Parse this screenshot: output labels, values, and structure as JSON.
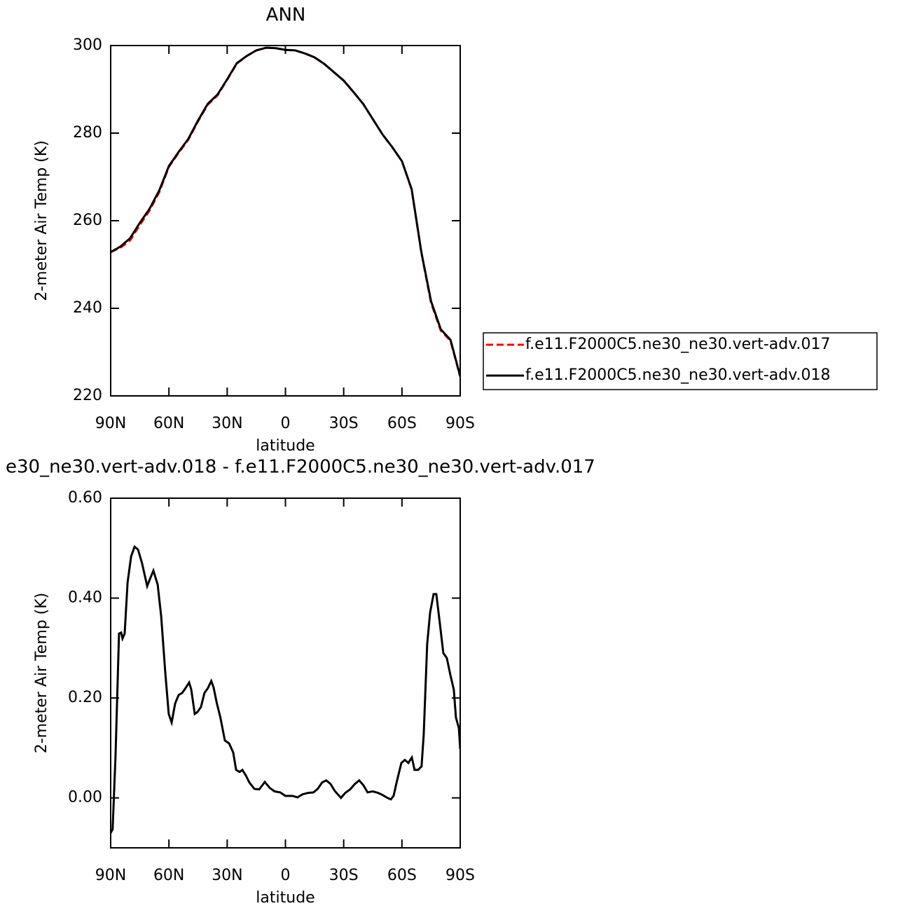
{
  "chart_data": [
    {
      "type": "line",
      "title": "ANN",
      "xlabel": "latitude",
      "ylabel": "2-meter Air Temp (K)",
      "x": [
        90,
        85,
        80,
        75,
        70,
        65,
        60,
        55,
        50,
        45,
        40,
        35,
        30,
        25,
        20,
        15,
        10,
        5,
        0,
        -5,
        -10,
        -15,
        -20,
        -25,
        -30,
        -35,
        -40,
        -45,
        -50,
        -55,
        -60,
        -65,
        -70,
        -75,
        -80,
        -85,
        -90
      ],
      "series": [
        {
          "name": "f.e11.F2000C5.ne30_ne30.vert-adv.017",
          "color": "#ff0000",
          "style": "dashed",
          "values": [
            252.9,
            253.8,
            255.5,
            259.0,
            262.3,
            266.5,
            272.3,
            275.5,
            278.5,
            282.7,
            286.5,
            288.6,
            292.2,
            295.9,
            297.6,
            298.9,
            299.5,
            299.4,
            299.0,
            298.9,
            298.2,
            297.3,
            295.8,
            293.9,
            292.0,
            289.4,
            286.7,
            283.2,
            279.7,
            276.8,
            273.6,
            267.1,
            252.7,
            241.2,
            234.9,
            232.6,
            224.4
          ]
        },
        {
          "name": "f.e11.F2000C5.ne30_ne30.vert-adv.018",
          "color": "#000000",
          "style": "solid",
          "values": [
            252.8,
            254.1,
            256.0,
            259.5,
            262.7,
            266.9,
            272.5,
            275.7,
            278.7,
            282.9,
            286.7,
            288.8,
            292.3,
            296.0,
            297.6,
            298.9,
            299.5,
            299.4,
            299.0,
            298.9,
            298.2,
            297.3,
            295.8,
            293.9,
            292.0,
            289.4,
            286.7,
            283.2,
            279.7,
            276.8,
            273.6,
            267.2,
            252.8,
            241.6,
            235.2,
            232.8,
            224.5
          ]
        }
      ],
      "xlim": [
        90,
        -90
      ],
      "xticks": [
        {
          "value": 90,
          "label": "90N"
        },
        {
          "value": 60,
          "label": "60N"
        },
        {
          "value": 30,
          "label": "30N"
        },
        0,
        {
          "value": -30,
          "label": "30S"
        },
        {
          "value": -60,
          "label": "60S"
        },
        {
          "value": -90,
          "label": "90S"
        }
      ],
      "ylim": [
        220,
        300
      ],
      "yticks": [
        220,
        240,
        260,
        280,
        300
      ],
      "legend": "right"
    },
    {
      "type": "line",
      "title": "e30_ne30.vert-adv.018 - f.e11.F2000C5.ne30_ne30.vert-adv.017",
      "xlabel": "latitude",
      "ylabel": "2-meter Air Temp (K)",
      "x": [
        90,
        89,
        87.5,
        85.7,
        84.6,
        83.9,
        82.8,
        81.3,
        79.5,
        77.7,
        75.9,
        73.8,
        71.2,
        70.2,
        68.0,
        65.8,
        64.0,
        61.9,
        60.1,
        58.6,
        56.8,
        55.0,
        53.2,
        51.4,
        49.6,
        48.5,
        46.7,
        45.3,
        43.5,
        41.7,
        39.9,
        38.2,
        37.0,
        35.3,
        33.5,
        31.2,
        29.0,
        26.9,
        25.4,
        23.6,
        22.2,
        20.4,
        18.6,
        16.0,
        13.5,
        10.6,
        8.1,
        5.6,
        2.7,
        0,
        -3.6,
        -6.2,
        -8.7,
        -11.6,
        -14.4,
        -16.6,
        -18.9,
        -21.0,
        -23.2,
        -25.4,
        -28.6,
        -30.8,
        -33.3,
        -35.8,
        -38.0,
        -40.2,
        -42.3,
        -44.9,
        -47.7,
        -49.9,
        -52.5,
        -54.3,
        -55.7,
        -57.5,
        -59.7,
        -61.5,
        -63.3,
        -65.1,
        -66.5,
        -68.3,
        -70.1,
        -71.2,
        -73.0,
        -74.5,
        -76.3,
        -77.7,
        -79.5,
        -81.3,
        -83.1,
        -85.0,
        -86.7,
        -87.8,
        -89.3,
        -90
      ],
      "series": [
        {
          "color": "#000000",
          "style": "solid",
          "values": [
            -0.07,
            -0.063,
            0.084,
            0.329,
            0.331,
            0.319,
            0.329,
            0.431,
            0.483,
            0.503,
            0.497,
            0.469,
            0.424,
            0.434,
            0.455,
            0.427,
            0.364,
            0.252,
            0.168,
            0.151,
            0.189,
            0.206,
            0.21,
            0.22,
            0.231,
            0.217,
            0.168,
            0.172,
            0.182,
            0.21,
            0.22,
            0.234,
            0.221,
            0.189,
            0.161,
            0.115,
            0.109,
            0.091,
            0.056,
            0.052,
            0.056,
            0.045,
            0.031,
            0.018,
            0.017,
            0.032,
            0.02,
            0.013,
            0.011,
            0.004,
            0.004,
            0.001,
            0.007,
            0.01,
            0.011,
            0.018,
            0.031,
            0.035,
            0.028,
            0.014,
            0,
            0.01,
            0.017,
            0.028,
            0.035,
            0.025,
            0.011,
            0.013,
            0.01,
            0.006,
            0,
            -0.003,
            0.004,
            0.035,
            0.07,
            0.076,
            0.07,
            0.081,
            0.056,
            0.056,
            0.063,
            0.126,
            0.308,
            0.371,
            0.408,
            0.408,
            0.35,
            0.29,
            0.28,
            0.245,
            0.217,
            0.161,
            0.14,
            0.098
          ]
        }
      ],
      "xlim": [
        90,
        -90
      ],
      "xticks": [
        {
          "value": 90,
          "label": "90N"
        },
        {
          "value": 60,
          "label": "60N"
        },
        {
          "value": 30,
          "label": "30N"
        },
        0,
        {
          "value": -30,
          "label": "30S"
        },
        {
          "value": -60,
          "label": "60S"
        },
        {
          "value": -90,
          "label": "90S"
        }
      ],
      "ylim": [
        -0.1,
        0.6
      ],
      "yticks": [
        {
          "value": 0,
          "label": "0.00"
        },
        {
          "value": 0.2,
          "label": "0.20"
        },
        {
          "value": 0.4,
          "label": "0.40"
        },
        {
          "value": 0.6,
          "label": "0.60"
        }
      ]
    }
  ]
}
